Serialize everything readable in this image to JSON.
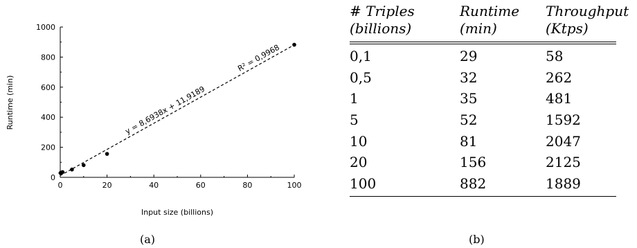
{
  "chart_data": {
    "type": "scatter",
    "xlabel": "Input size (billions)",
    "ylabel": "Runtime (min)",
    "xlim": [
      0,
      100
    ],
    "ylim": [
      0,
      1000
    ],
    "xticks": [
      0,
      20,
      40,
      60,
      80,
      100
    ],
    "yticks": [
      0,
      200,
      400,
      600,
      800,
      1000
    ],
    "grid": false,
    "x": [
      0.1,
      0.5,
      1,
      5,
      10,
      20,
      100
    ],
    "y": [
      29,
      32,
      35,
      52,
      81,
      156,
      882
    ],
    "trendline": {
      "type": "linear",
      "slope": 8.6938,
      "intercept": 11.9189,
      "equation": "y = 8,6938x + 11,9189",
      "r2_label": "R² = 0,9968"
    }
  },
  "captions": {
    "a": "(a)",
    "b": "(b)"
  },
  "table": {
    "headers": [
      [
        "# Triples",
        "(billions)"
      ],
      [
        "Runtime",
        "(min)"
      ],
      [
        "Throughput",
        "(Ktps)"
      ]
    ],
    "rows": [
      [
        "0,1",
        "29",
        "58"
      ],
      [
        "0,5",
        "32",
        "262"
      ],
      [
        "1",
        "35",
        "481"
      ],
      [
        "5",
        "52",
        "1592"
      ],
      [
        "10",
        "81",
        "2047"
      ],
      [
        "20",
        "156",
        "2125"
      ],
      [
        "100",
        "882",
        "1889"
      ]
    ]
  }
}
